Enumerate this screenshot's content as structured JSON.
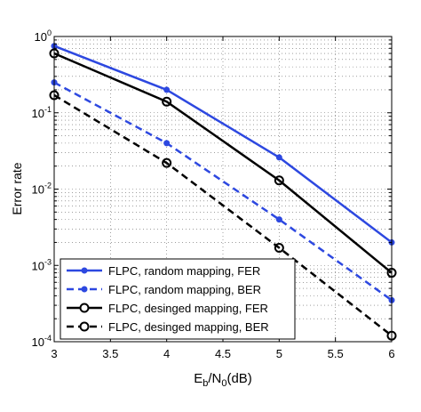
{
  "colors": {
    "blue": "#2d48e0",
    "black": "#000000",
    "grid": "#555555"
  },
  "chart_data": {
    "type": "line",
    "y_scale": "log",
    "xlim": [
      3,
      6
    ],
    "ylim": [
      0.0001,
      1
    ],
    "grid": true,
    "legend_position": "bottom-left",
    "xlabel_parts": {
      "E": "E",
      "b": "b",
      "slash": "/N",
      "zero": "0",
      "tail": "(dB)"
    },
    "ylabel": "Error rate",
    "x_ticks": [
      3,
      3.5,
      4,
      4.5,
      5,
      5.5,
      6
    ],
    "x_tick_labels": [
      "3",
      "3.5",
      "4",
      "4.5",
      "5",
      "5.5",
      "6"
    ],
    "y_ticks": [
      {
        "value": 1,
        "base": "10",
        "exp": "0"
      },
      {
        "value": 0.1,
        "base": "10",
        "exp": "-1"
      },
      {
        "value": 0.01,
        "base": "10",
        "exp": "-2"
      },
      {
        "value": 0.001,
        "base": "10",
        "exp": "-3"
      },
      {
        "value": 0.0001,
        "base": "10",
        "exp": "-4"
      }
    ],
    "series": [
      {
        "name": "FLPC, random mapping, FER",
        "color": "#2d48e0",
        "dash": "solid",
        "marker": "dot",
        "x": [
          3,
          4,
          5,
          6
        ],
        "y": [
          0.75,
          0.2,
          0.026,
          0.002
        ]
      },
      {
        "name": "FLPC, random mapping, BER",
        "color": "#2d48e0",
        "dash": "dashed",
        "marker": "dot",
        "x": [
          3,
          4,
          5,
          6
        ],
        "y": [
          0.25,
          0.04,
          0.004,
          0.00035
        ]
      },
      {
        "name": "FLPC, desinged mapping, FER",
        "color": "#000000",
        "dash": "solid",
        "marker": "circle",
        "x": [
          3,
          4,
          5,
          6
        ],
        "y": [
          0.6,
          0.14,
          0.013,
          0.0008
        ]
      },
      {
        "name": "FLPC, desinged mapping, BER",
        "color": "#000000",
        "dash": "dashed",
        "marker": "circle",
        "x": [
          3,
          4,
          5,
          6
        ],
        "y": [
          0.17,
          0.022,
          0.0017,
          0.00012
        ]
      }
    ]
  }
}
